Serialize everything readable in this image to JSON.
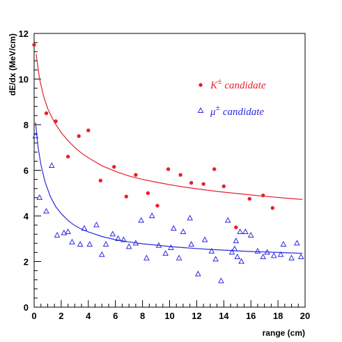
{
  "chart_data": {
    "type": "scatter",
    "title": "",
    "xlabel": "range (cm)",
    "ylabel": "dE/dx (MeV/cm)",
    "xlim": [
      0,
      20
    ],
    "ylim": [
      0,
      12
    ],
    "x_ticks": [
      0,
      2,
      4,
      6,
      8,
      10,
      12,
      14,
      16,
      18,
      20
    ],
    "y_ticks": [
      0,
      2,
      4,
      6,
      8,
      10,
      12
    ],
    "grid": false,
    "legend_position": "top-right",
    "series": [
      {
        "name": "K",
        "name_superscript": "±",
        "name_suffix": " candidate",
        "marker": "filled-circle",
        "color": "#e8202a",
        "points": [
          [
            0.0,
            11.5
          ],
          [
            0.9,
            8.5
          ],
          [
            1.6,
            8.15
          ],
          [
            2.5,
            6.6
          ],
          [
            3.3,
            7.5
          ],
          [
            4.0,
            7.75
          ],
          [
            4.9,
            5.55
          ],
          [
            5.9,
            6.15
          ],
          [
            6.8,
            4.85
          ],
          [
            7.5,
            5.8
          ],
          [
            8.4,
            5.0
          ],
          [
            9.1,
            4.45
          ],
          [
            9.9,
            6.05
          ],
          [
            10.8,
            5.8
          ],
          [
            11.6,
            5.45
          ],
          [
            12.5,
            5.4
          ],
          [
            13.3,
            6.05
          ],
          [
            14.0,
            5.3
          ],
          [
            14.9,
            3.5
          ],
          [
            15.9,
            4.75
          ],
          [
            16.9,
            4.9
          ],
          [
            17.6,
            4.35
          ]
        ],
        "fit_curve": {
          "x": [
            0.15,
            0.4,
            0.7,
            1.0,
            1.5,
            2.0,
            2.5,
            3.0,
            3.5,
            4.0,
            5.0,
            6.0,
            7.0,
            8.0,
            9.0,
            10.0,
            11.0,
            12.0,
            13.0,
            14.0,
            15.0,
            16.0,
            17.0,
            18.0,
            19.0,
            19.8
          ],
          "y": [
            11.1,
            10.0,
            9.25,
            8.7,
            8.1,
            7.65,
            7.3,
            7.0,
            6.75,
            6.55,
            6.2,
            5.95,
            5.75,
            5.6,
            5.48,
            5.37,
            5.27,
            5.19,
            5.11,
            5.04,
            4.98,
            4.92,
            4.86,
            4.81,
            4.76,
            4.72
          ]
        }
      },
      {
        "name": "μ",
        "name_superscript": "±",
        "name_suffix": " candidate",
        "marker": "open-triangle",
        "color": "#2a2adf",
        "points": [
          [
            0.1,
            7.5
          ],
          [
            0.4,
            4.8
          ],
          [
            0.9,
            4.2
          ],
          [
            1.3,
            6.2
          ],
          [
            1.7,
            3.15
          ],
          [
            2.2,
            3.25
          ],
          [
            2.5,
            3.3
          ],
          [
            2.8,
            2.85
          ],
          [
            3.4,
            2.75
          ],
          [
            3.7,
            3.45
          ],
          [
            4.1,
            2.75
          ],
          [
            4.6,
            3.6
          ],
          [
            5.0,
            2.3
          ],
          [
            5.3,
            2.75
          ],
          [
            5.8,
            3.2
          ],
          [
            6.2,
            3.0
          ],
          [
            6.6,
            2.95
          ],
          [
            7.0,
            2.65
          ],
          [
            7.5,
            2.8
          ],
          [
            7.9,
            3.8
          ],
          [
            8.3,
            2.15
          ],
          [
            8.7,
            4.0
          ],
          [
            9.2,
            2.7
          ],
          [
            9.7,
            2.35
          ],
          [
            10.1,
            2.6
          ],
          [
            10.3,
            3.45
          ],
          [
            10.7,
            2.15
          ],
          [
            11.0,
            3.3
          ],
          [
            11.5,
            3.9
          ],
          [
            11.6,
            2.75
          ],
          [
            12.1,
            1.45
          ],
          [
            12.6,
            2.95
          ],
          [
            13.1,
            2.45
          ],
          [
            13.4,
            2.1
          ],
          [
            13.8,
            1.15
          ],
          [
            14.3,
            3.8
          ],
          [
            14.6,
            2.4
          ],
          [
            14.8,
            2.55
          ],
          [
            14.9,
            2.9
          ],
          [
            15.0,
            2.2
          ],
          [
            15.2,
            3.3
          ],
          [
            15.3,
            2.0
          ],
          [
            15.6,
            3.3
          ],
          [
            16.0,
            3.15
          ],
          [
            16.5,
            2.45
          ],
          [
            16.9,
            2.2
          ],
          [
            17.2,
            2.4
          ],
          [
            17.7,
            2.25
          ],
          [
            18.2,
            2.3
          ],
          [
            18.4,
            2.75
          ],
          [
            19.0,
            2.15
          ],
          [
            19.4,
            2.8
          ],
          [
            19.7,
            2.2
          ]
        ],
        "fit_curve": {
          "x": [
            0.1,
            0.3,
            0.5,
            0.8,
            1.2,
            1.6,
            2.0,
            2.5,
            3.0,
            3.5,
            4.0,
            5.0,
            6.0,
            7.0,
            8.0,
            9.0,
            10.0,
            11.0,
            12.0,
            13.0,
            14.0,
            15.0,
            16.0,
            17.0,
            18.0,
            19.0,
            19.8
          ],
          "y": [
            8.1,
            7.0,
            6.25,
            5.5,
            4.85,
            4.4,
            4.1,
            3.8,
            3.58,
            3.42,
            3.3,
            3.1,
            2.96,
            2.86,
            2.78,
            2.72,
            2.66,
            2.61,
            2.57,
            2.53,
            2.5,
            2.47,
            2.44,
            2.42,
            2.4,
            2.38,
            2.36
          ]
        }
      }
    ]
  }
}
